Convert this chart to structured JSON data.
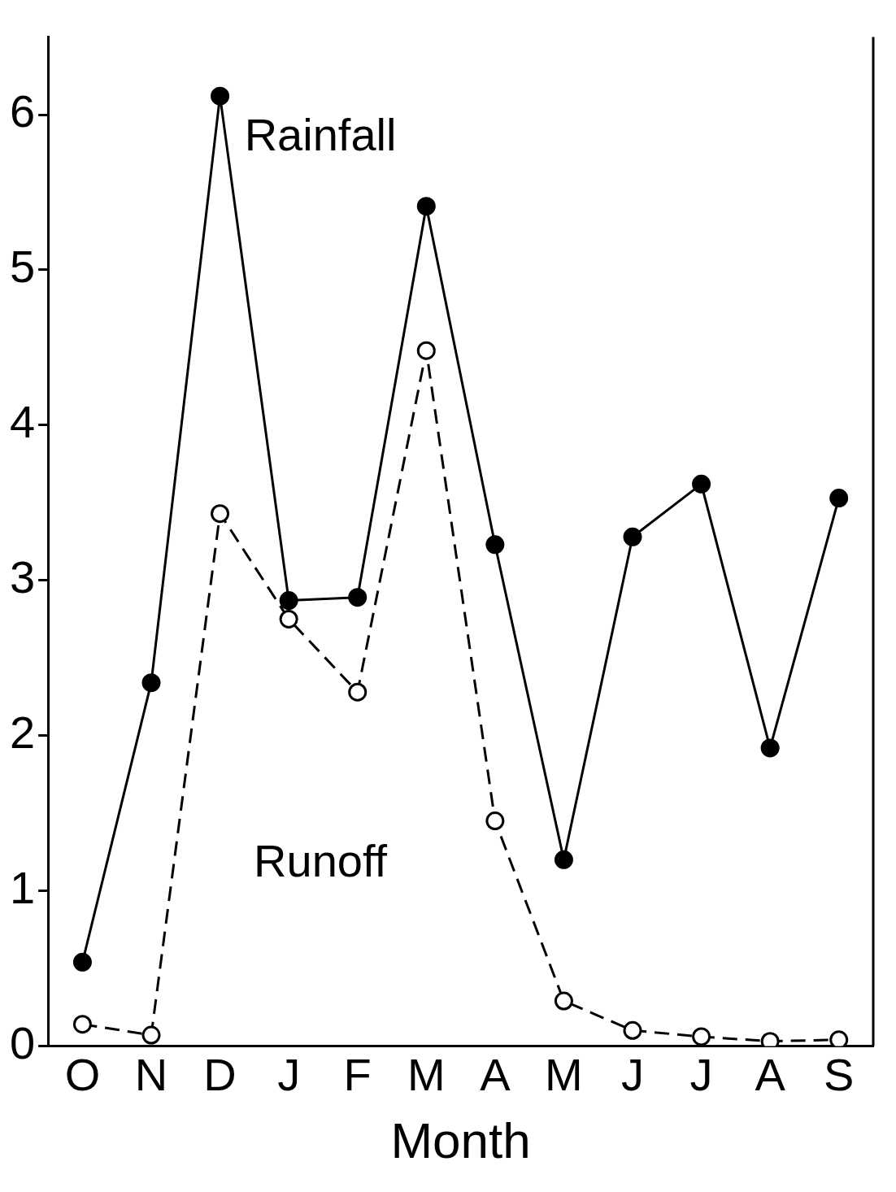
{
  "chart_data": {
    "type": "line",
    "xlabel": "Month",
    "categories": [
      "O",
      "N",
      "D",
      "J",
      "F",
      "M",
      "A",
      "M",
      "J",
      "J",
      "A",
      "S"
    ],
    "series": [
      {
        "name": "Rainfall",
        "color": "#000000",
        "marker": "circle",
        "line_style": "solid",
        "values": [
          0.54,
          2.34,
          6.12,
          2.87,
          2.89,
          5.41,
          3.23,
          1.2,
          3.28,
          3.62,
          1.92,
          3.53
        ]
      },
      {
        "name": "Runoff",
        "color": "#000000",
        "marker": "circle",
        "line_style": "dashed",
        "values": [
          0.14,
          0.07,
          3.43,
          2.75,
          2.28,
          4.48,
          1.45,
          0.29,
          0.1,
          0.06,
          0.03,
          0.04
        ]
      }
    ],
    "ylim": [
      0,
      6.5
    ],
    "yticks": [
      0,
      1,
      2,
      3,
      4,
      5,
      6
    ],
    "grid": false,
    "legend": false
  }
}
